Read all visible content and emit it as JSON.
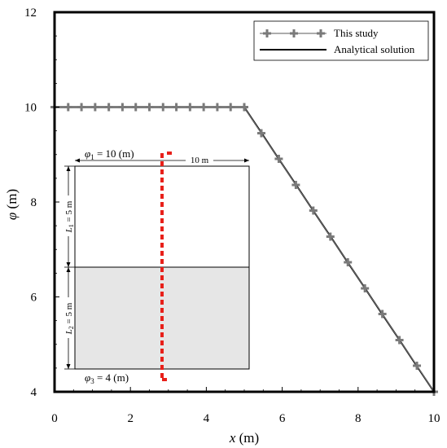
{
  "chart_data": {
    "type": "line",
    "xlabel": {
      "symbol": "x",
      "unit": " (m)"
    },
    "ylabel": {
      "symbol": "φ",
      "unit": " (m)"
    },
    "xlim": [
      0,
      10
    ],
    "ylim": [
      4,
      12
    ],
    "xticks": [
      0,
      2,
      4,
      6,
      8,
      10
    ],
    "yticks": [
      4,
      6,
      8,
      10,
      12
    ],
    "grid": false,
    "legend_position": "top-right",
    "series": [
      {
        "name": "This study",
        "style": "markers-plus",
        "color": "#7a7a7a",
        "x": [
          0,
          0.36,
          0.71,
          1.07,
          1.43,
          1.79,
          2.14,
          2.5,
          2.86,
          3.21,
          3.57,
          3.93,
          4.29,
          4.64,
          5.0,
          5.45,
          5.91,
          6.36,
          6.82,
          7.27,
          7.73,
          8.18,
          8.64,
          9.09,
          9.55,
          10.0
        ],
        "y": [
          10,
          10,
          10,
          10,
          10,
          10,
          10,
          10,
          10,
          10,
          10,
          10,
          10,
          10,
          10,
          9.45,
          8.91,
          8.36,
          7.82,
          7.27,
          6.73,
          6.18,
          5.64,
          5.09,
          4.55,
          4.0
        ]
      },
      {
        "name": "Analytical solution",
        "style": "line",
        "color": "#000000",
        "x": [
          0,
          5,
          10
        ],
        "y": [
          10,
          10,
          4
        ]
      }
    ]
  },
  "inset": {
    "top_label_prefix": "φ",
    "top_label_sub": "1",
    "top_label_rest": " = 10 (m)",
    "bottom_label_prefix": "φ",
    "bottom_label_sub": "3",
    "bottom_label_rest": " = 4 (m)",
    "width_label": "10 m",
    "layer1_label_prefix": "L",
    "layer1_label_sub": "1",
    "layer1_label_rest": " = 5 m",
    "layer2_label_prefix": "L",
    "layer2_label_sub": "2",
    "layer2_label_rest": " = 5 m",
    "lower_layer_color": "#e6e6e6",
    "dashed_line_color": "#e8201a"
  }
}
